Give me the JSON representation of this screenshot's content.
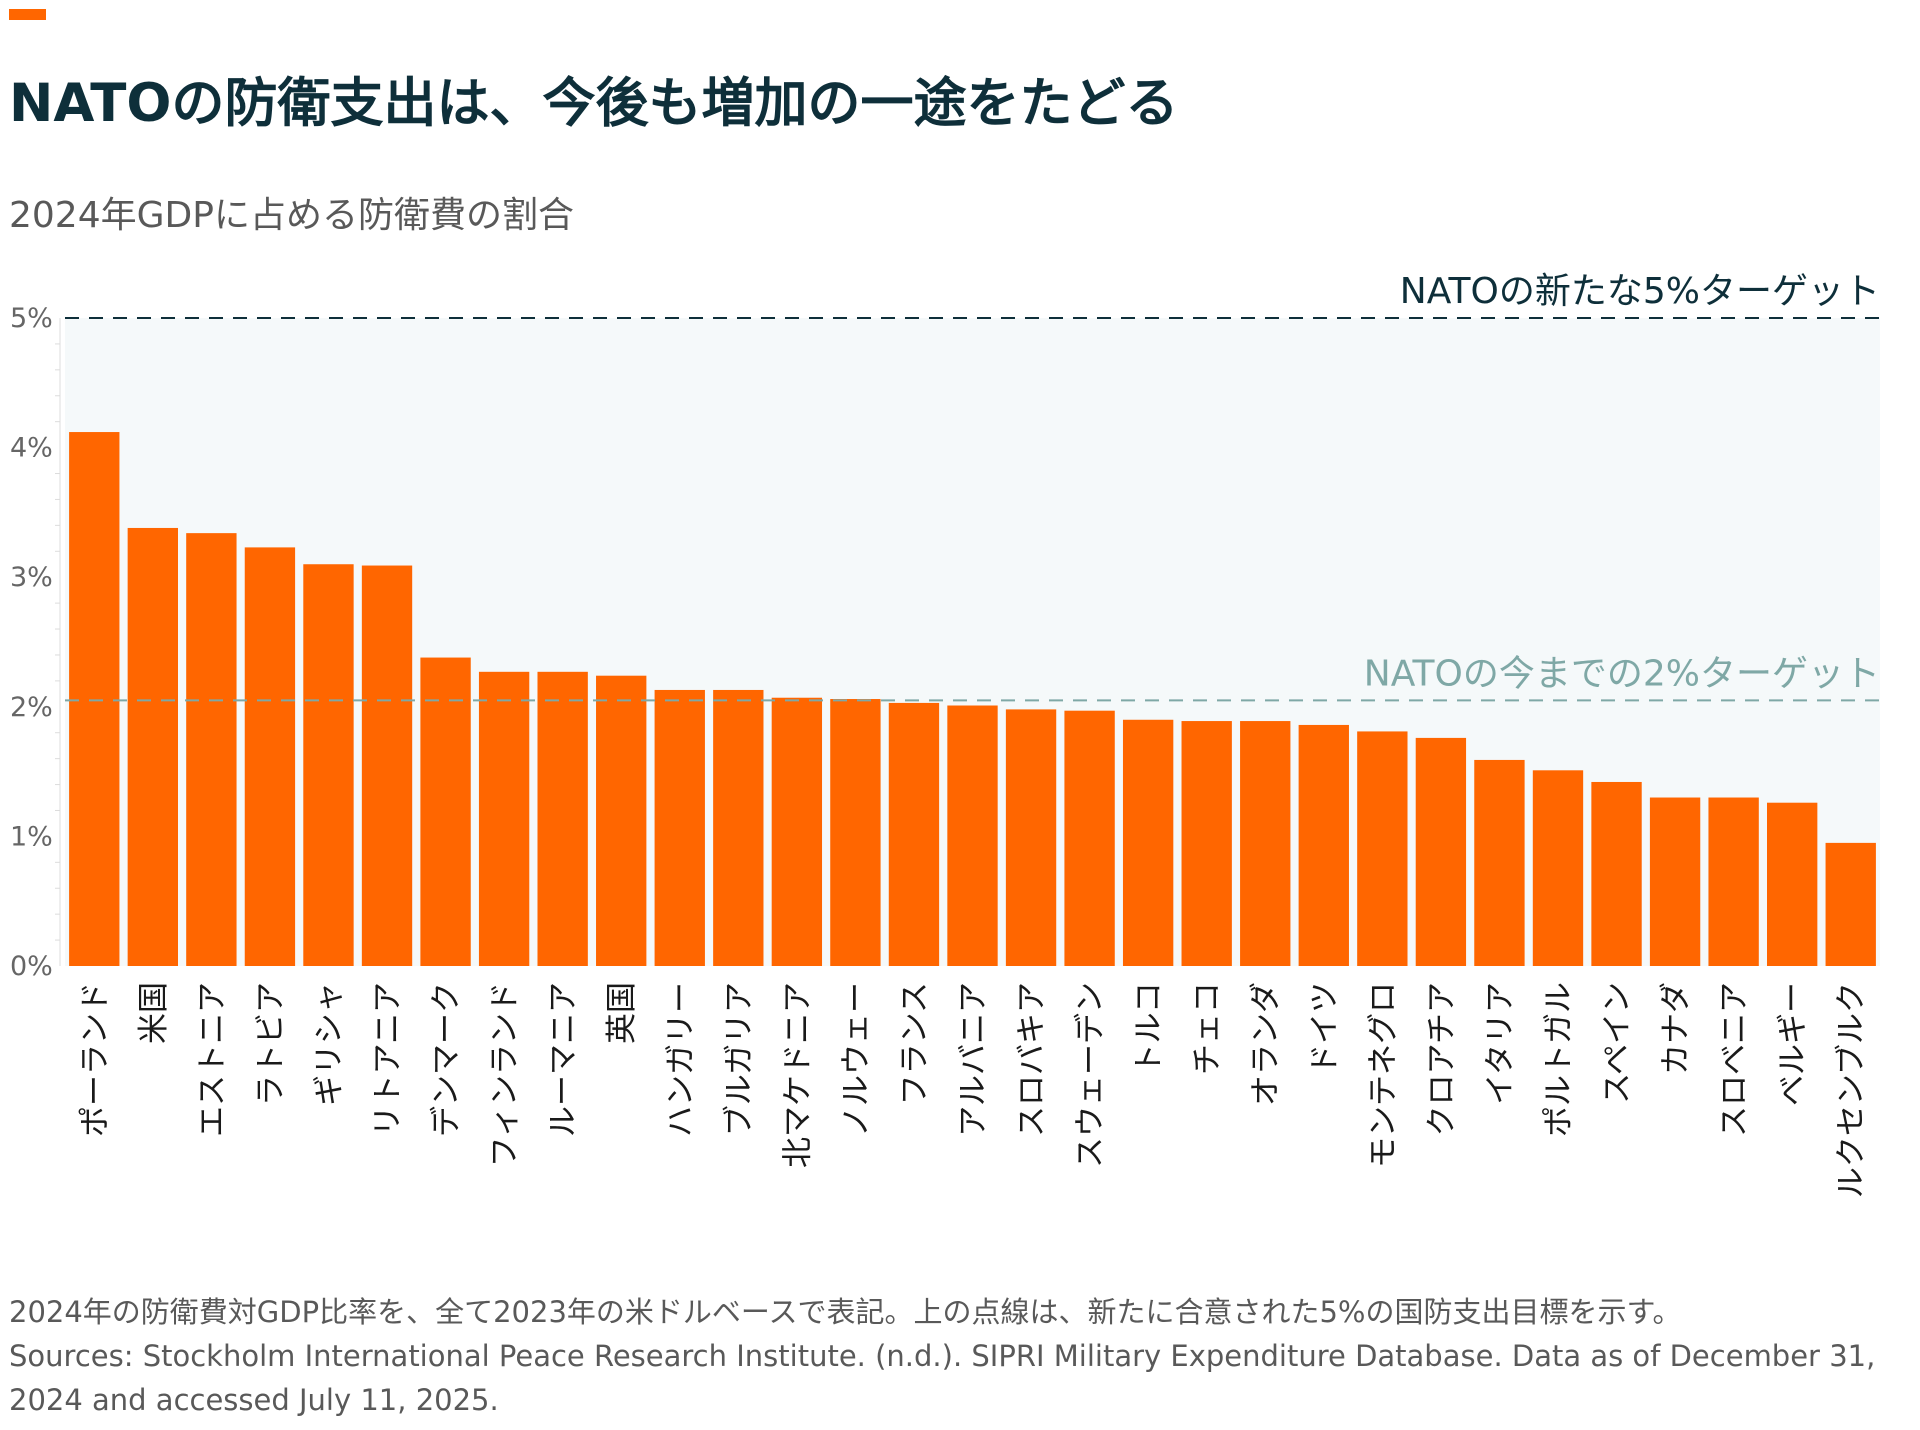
{
  "header": {
    "accent_color": "#ff6600",
    "title": "NATOの防衛支出は、今後も増加の一途をたどる",
    "subtitle": "2024年GDPに占める防衛費の割合"
  },
  "chart_data": {
    "type": "bar",
    "orientation": "vertical",
    "ylim": [
      0,
      5
    ],
    "yticks": [
      "0%",
      "1%",
      "2%",
      "3%",
      "4%",
      "5%"
    ],
    "bar_color": "#ff6600",
    "plot_background": "#f5f9fa",
    "categories": [
      "ポーランド",
      "米国",
      "エストニア",
      "ラトビア",
      "ギリシャ",
      "リトアニア",
      "デンマーク",
      "フィンランド",
      "ルーマニア",
      "英国",
      "ハンガリー",
      "ブルガリア",
      "北マケドニア",
      "ノルウェー",
      "フランス",
      "アルバニア",
      "スロバキア",
      "スウェーデン",
      "トルコ",
      "チェコ",
      "オランダ",
      "ドイツ",
      "モンテネグロ",
      "クロアチア",
      "イタリア",
      "ポルトガル",
      "スペイン",
      "カナダ",
      "スロベニア",
      "ベルギー",
      "ルクセンブルク"
    ],
    "values": [
      4.12,
      3.38,
      3.34,
      3.23,
      3.1,
      3.09,
      2.38,
      2.27,
      2.27,
      2.24,
      2.13,
      2.13,
      2.07,
      2.06,
      2.03,
      2.01,
      1.98,
      1.97,
      1.9,
      1.89,
      1.89,
      1.86,
      1.81,
      1.76,
      1.59,
      1.51,
      1.42,
      1.3,
      1.3,
      1.26,
      0.95
    ],
    "reference_lines": [
      {
        "value": 5,
        "label": "NATOの新たな5%ターゲット",
        "color": "#0e2f3a"
      },
      {
        "value": 2.05,
        "label": "NATOの今までの2%ターゲット",
        "color": "#7fa8a6"
      }
    ]
  },
  "footer": {
    "note": "2024年の防衛費対GDP比率を、全て2023年の米ドルベースで表記。上の点線は、新たに合意された5%の国防支出目標を示す。",
    "sources": "Sources: Stockholm International Peace Research Institute. (n.d.). SIPRI Military Expenditure Database. Data as of December 31, 2024 and accessed July 11, 2025."
  }
}
